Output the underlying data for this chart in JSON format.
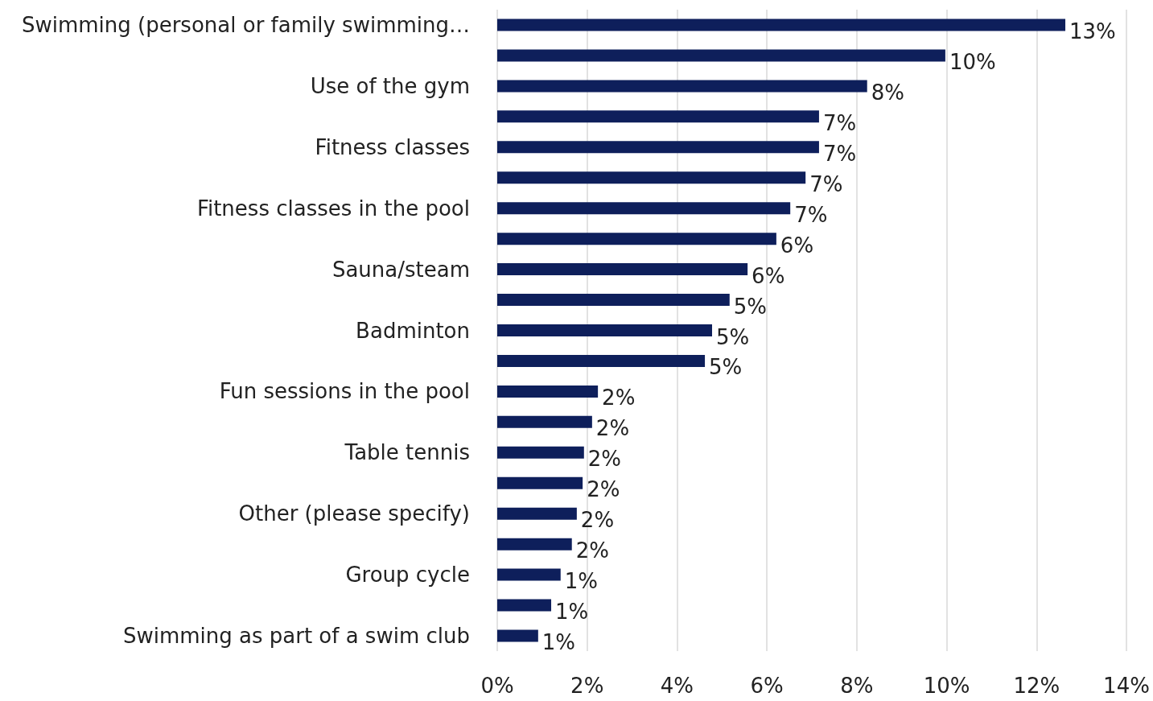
{
  "chart_data": {
    "type": "bar",
    "orientation": "horizontal",
    "categories": [
      "Swimming (personal or family swimming…",
      null,
      "Use of the gym",
      null,
      "Fitness classes",
      null,
      "Fitness classes in the pool",
      null,
      "Sauna/steam",
      null,
      "Badminton",
      null,
      "Fun sessions in the pool",
      null,
      "Table tennis",
      null,
      "Other (please specify)",
      null,
      "Group cycle",
      null,
      "Swimming as part of a swim club"
    ],
    "values": [
      12.64,
      9.97,
      8.23,
      7.16,
      7.16,
      6.86,
      6.52,
      6.21,
      5.57,
      5.17,
      4.78,
      4.62,
      2.24,
      2.11,
      1.93,
      1.9,
      1.77,
      1.66,
      1.41,
      1.2,
      0.91
    ],
    "value_labels": [
      "13%",
      "10%",
      "8%",
      "7%",
      "7%",
      "7%",
      "7%",
      "6%",
      "6%",
      "5%",
      "5%",
      "5%",
      "2%",
      "2%",
      "2%",
      "2%",
      "2%",
      "2%",
      "1%",
      "1%",
      "1%"
    ],
    "color": "#0e1f5b",
    "xlim": [
      0,
      14
    ],
    "xticks": [
      {
        "value": 0,
        "label": "0%"
      },
      {
        "value": 2,
        "label": "2%"
      },
      {
        "value": 4,
        "label": "4%"
      },
      {
        "value": 6,
        "label": "6%"
      },
      {
        "value": 8,
        "label": "8%"
      },
      {
        "value": 10,
        "label": "10%"
      },
      {
        "value": 12,
        "label": "12%"
      },
      {
        "value": 14,
        "label": "14%"
      }
    ],
    "grid": "x"
  }
}
